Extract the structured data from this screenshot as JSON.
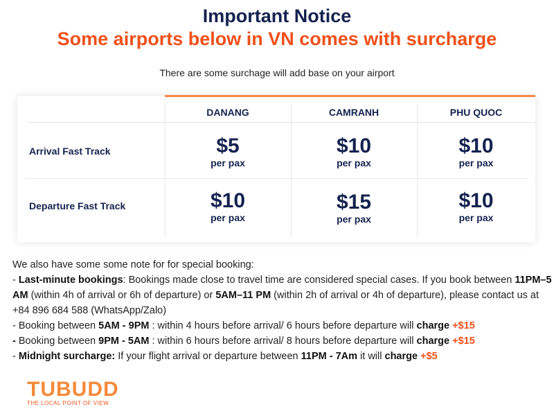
{
  "header": {
    "title": "Important Notice",
    "subtitle": "Some airports below in VN comes with surcharge",
    "description": "There are some surchage will add base on your airport"
  },
  "table": {
    "columns": [
      "DANANG",
      "CAMRANH",
      "PHU QUOC"
    ],
    "rows": [
      {
        "label": "Arrival Fast Track",
        "prices": [
          "$5",
          "$10",
          "$10"
        ]
      },
      {
        "label": "Departure Fast Track",
        "prices": [
          "$10",
          "$15",
          "$10"
        ]
      }
    ],
    "unit": "per pax"
  },
  "notes": {
    "intro": "We also have some some note for for special booking:",
    "l1": {
      "a": "- ",
      "b": "Last-minute bookings",
      "c": ": Bookings made close to travel time are considered special cases. If you book between ",
      "d": "11PM–5 AM",
      "e": " (within 4h of arrival or 6h of departure) or ",
      "f": "5AM–11 PM",
      "g": " (within 2h of arrival or 4h of departure), please contact us at +84 896 684 588 (WhatsApp/Zalo)"
    },
    "l2": {
      "a": "- Booking between ",
      "b": "5AM - 9PM",
      "c": " : within 4 hours before arrival/ 6 hours before departure will ",
      "d": "charge",
      "e": " +$15"
    },
    "l3": {
      "a": "- ",
      "b": "Booking between ",
      "c": "9PM - 5AM",
      "d": " : within 6 hours before arrival/ 8 hours before departure will ",
      "e": "charge",
      "f": " +$15"
    },
    "l4": {
      "a": "- ",
      "b": "Midnight surcharge:",
      "c": " If your flight arrival or departure between ",
      "d": "11PM - 7Am",
      "e": " it will ",
      "f": "charge",
      "g": " +$5"
    }
  },
  "logo": {
    "name": "TUBUDD",
    "tagline": "THE LOCAL POINT OF VIEW"
  },
  "colors": {
    "navy": "#14224f",
    "orange": "#f0501a",
    "accent_bar": "#f5874a"
  }
}
